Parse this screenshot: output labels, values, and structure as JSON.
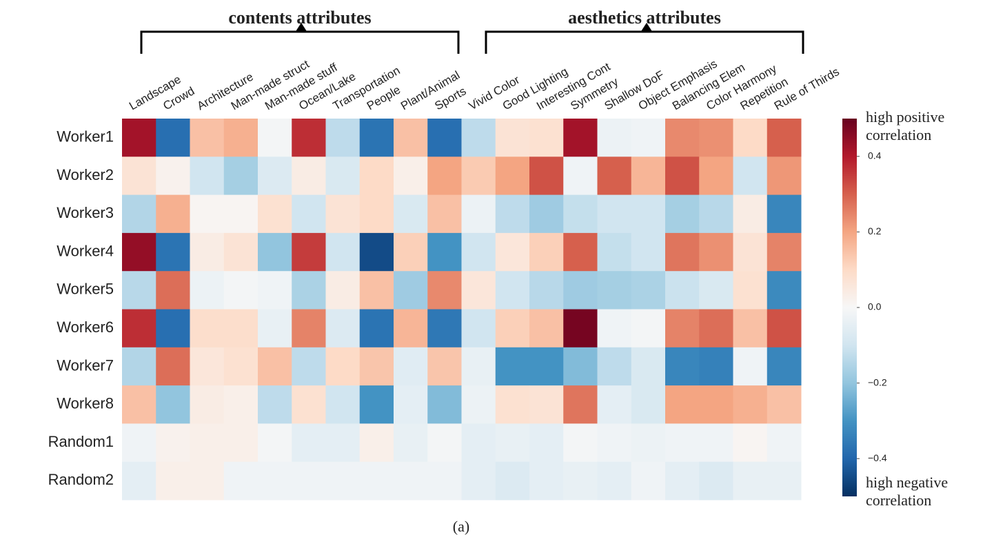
{
  "chart_data": {
    "type": "heatmap",
    "groups": [
      "contents attributes",
      "aesthetics attributes"
    ],
    "categories": [
      "Landscape",
      "Crowd",
      "Architecture",
      "Man-made struct",
      "Man-made stuff",
      "Ocean/Lake",
      "Transportation",
      "People",
      "Plant/Animal",
      "Sports",
      "Vivid Color",
      "Good Lighting",
      "Interesting Cont",
      "Symmetry",
      "Shallow DoF",
      "Object Emphasis",
      "Balancing Elem",
      "Color Harmony",
      "Repetition",
      "Rule of Thirds"
    ],
    "rows": [
      "Worker1",
      "Worker2",
      "Worker3",
      "Worker4",
      "Worker5",
      "Worker6",
      "Worker7",
      "Worker8",
      "Random1",
      "Random2"
    ],
    "values": [
      [
        0.42,
        -0.38,
        0.15,
        0.18,
        -0.01,
        0.37,
        -0.13,
        -0.37,
        0.15,
        -0.38,
        -0.13,
        0.07,
        0.08,
        0.42,
        -0.03,
        -0.02,
        0.24,
        0.23,
        0.1,
        0.3
      ],
      [
        0.07,
        0.02,
        -0.1,
        -0.17,
        -0.07,
        0.04,
        -0.08,
        0.1,
        0.03,
        0.2,
        0.13,
        0.2,
        0.32,
        -0.02,
        0.3,
        0.17,
        0.32,
        0.2,
        -0.1,
        0.22
      ],
      [
        -0.15,
        0.18,
        0.01,
        0.01,
        0.08,
        -0.1,
        0.07,
        0.1,
        -0.08,
        0.15,
        -0.03,
        -0.13,
        -0.18,
        -0.12,
        -0.1,
        -0.1,
        -0.17,
        -0.14,
        0.04,
        -0.33
      ],
      [
        0.44,
        -0.37,
        0.04,
        0.07,
        -0.2,
        0.35,
        -0.1,
        -0.45,
        0.12,
        -0.3,
        -0.1,
        0.06,
        0.12,
        0.3,
        -0.12,
        -0.1,
        0.27,
        0.23,
        0.07,
        0.25
      ],
      [
        -0.14,
        0.28,
        -0.03,
        -0.01,
        -0.02,
        -0.16,
        0.04,
        0.15,
        -0.18,
        0.24,
        0.06,
        -0.1,
        -0.14,
        -0.18,
        -0.17,
        -0.16,
        -0.11,
        -0.08,
        0.08,
        -0.32
      ],
      [
        0.37,
        -0.38,
        0.09,
        0.09,
        -0.04,
        0.25,
        -0.07,
        -0.37,
        0.17,
        -0.36,
        -0.1,
        0.12,
        0.15,
        0.48,
        -0.02,
        -0.01,
        0.25,
        0.28,
        0.15,
        0.32
      ],
      [
        -0.15,
        0.28,
        0.06,
        0.08,
        0.15,
        -0.13,
        0.1,
        0.14,
        -0.06,
        0.14,
        -0.04,
        -0.3,
        -0.3,
        -0.22,
        -0.13,
        -0.08,
        -0.33,
        -0.34,
        -0.02,
        -0.33
      ],
      [
        0.15,
        -0.2,
        0.04,
        0.03,
        -0.13,
        0.08,
        -0.1,
        -0.3,
        -0.05,
        -0.22,
        -0.03,
        0.08,
        0.07,
        0.27,
        -0.05,
        -0.08,
        0.2,
        0.2,
        0.18,
        0.15
      ],
      [
        -0.02,
        0.02,
        0.03,
        0.03,
        -0.01,
        -0.05,
        -0.05,
        0.03,
        -0.04,
        -0.01,
        -0.05,
        -0.04,
        -0.05,
        -0.01,
        -0.02,
        -0.03,
        -0.02,
        -0.02,
        0.01,
        -0.02
      ],
      [
        -0.05,
        0.03,
        0.03,
        -0.02,
        -0.02,
        -0.02,
        -0.02,
        -0.02,
        -0.02,
        -0.02,
        -0.05,
        -0.07,
        -0.05,
        -0.04,
        -0.05,
        -0.02,
        -0.05,
        -0.07,
        -0.04,
        -0.04
      ]
    ],
    "colormap": [
      "#053061",
      "#2166ac",
      "#4393c3",
      "#92c5de",
      "#d1e5f0",
      "#f7f7f7",
      "#fddbc7",
      "#f4a582",
      "#d6604d",
      "#b2182b",
      "#67001f"
    ],
    "clim": [
      -0.5,
      0.5
    ],
    "cticks": [
      0.4,
      0.2,
      {
        "value": 0.0,
        "label": "0.0"
      },
      {
        "value": -0.2,
        "label": "−0.2"
      },
      {
        "value": -0.4,
        "label": "−0.4"
      }
    ],
    "colorbar_top_label": [
      "high positive",
      "correlation"
    ],
    "colorbar_bottom_label": [
      "high negative",
      "correlation"
    ],
    "caption": "(a)"
  }
}
